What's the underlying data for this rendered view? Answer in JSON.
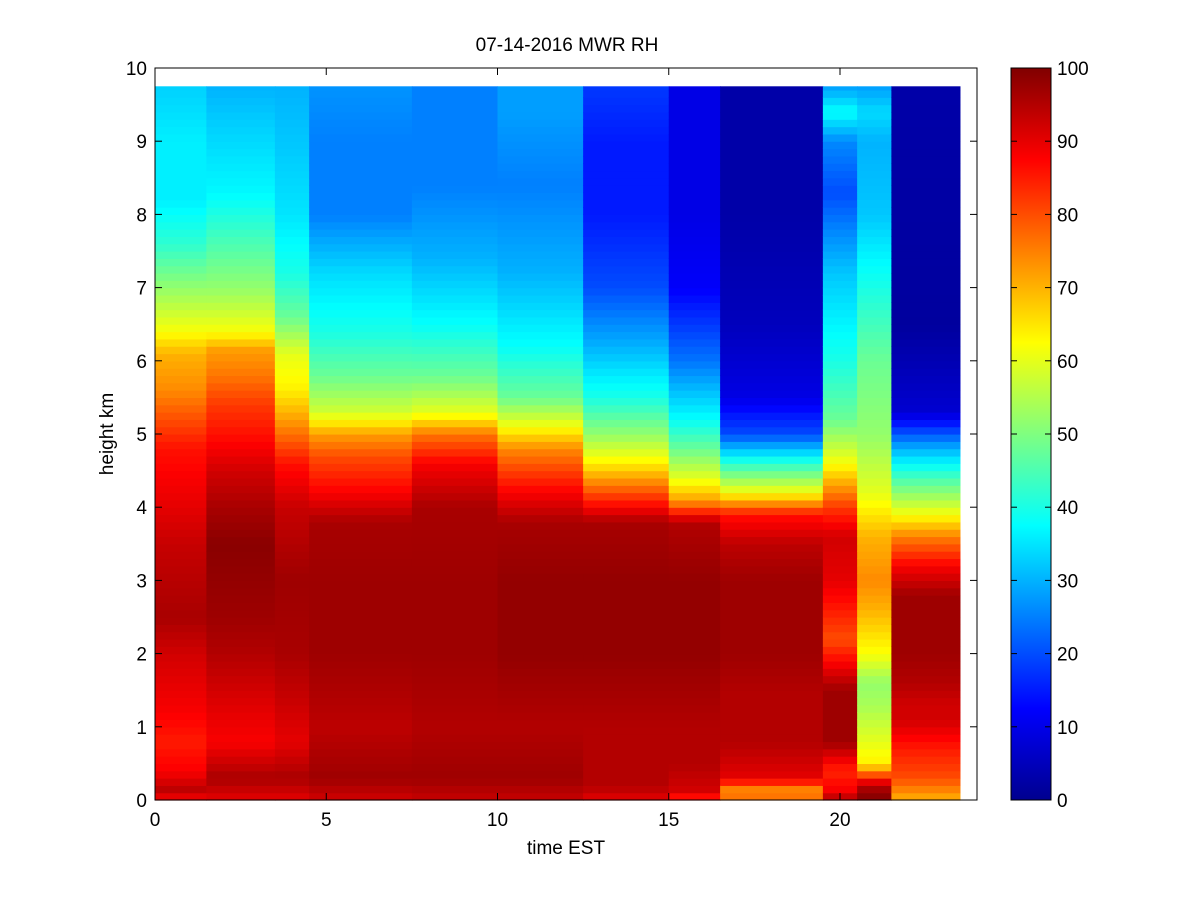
{
  "chart_data": {
    "type": "heatmap",
    "title": "07-14-2016 MWR RH",
    "xlabel": "time EST",
    "ylabel": "height km",
    "xlim": [
      0,
      24
    ],
    "ylim": [
      0,
      10
    ],
    "x_ticks": [
      0,
      5,
      10,
      15,
      20
    ],
    "y_ticks": [
      0,
      1,
      2,
      3,
      4,
      5,
      6,
      7,
      8,
      9,
      10
    ],
    "colorbar": {
      "colormap": "jet",
      "clim": [
        0,
        100
      ],
      "ticks": [
        0,
        10,
        20,
        30,
        40,
        50,
        60,
        70,
        80,
        90,
        100
      ]
    },
    "columns": [
      {
        "t0": 0.0,
        "t1": 1.5,
        "profile": [
          [
            0,
            85
          ],
          [
            0.1,
            95
          ],
          [
            0.4,
            88
          ],
          [
            0.8,
            85
          ],
          [
            1.2,
            88
          ],
          [
            2,
            92
          ],
          [
            2.5,
            96
          ],
          [
            3.5,
            93
          ],
          [
            4,
            90
          ],
          [
            4.8,
            86
          ],
          [
            5.2,
            80
          ],
          [
            5.6,
            74
          ],
          [
            6.1,
            70
          ],
          [
            6.4,
            62
          ],
          [
            7.0,
            52
          ],
          [
            7.6,
            42
          ],
          [
            8.2,
            36
          ],
          [
            9.0,
            36
          ],
          [
            9.75,
            33
          ]
        ]
      },
      {
        "t0": 1.5,
        "t1": 3.5,
        "profile": [
          [
            0,
            90
          ],
          [
            0.3,
            96
          ],
          [
            0.8,
            88
          ],
          [
            1.2,
            90
          ],
          [
            2,
            95
          ],
          [
            2.5,
            97
          ],
          [
            3.5,
            99
          ],
          [
            4,
            96
          ],
          [
            4.5,
            92
          ],
          [
            5.0,
            86
          ],
          [
            5.4,
            82
          ],
          [
            5.8,
            76
          ],
          [
            6.15,
            72
          ],
          [
            6.4,
            62
          ],
          [
            7.0,
            52
          ],
          [
            7.6,
            45
          ],
          [
            8.3,
            37
          ],
          [
            9.2,
            33
          ],
          [
            9.75,
            30
          ]
        ]
      },
      {
        "t0": 3.5,
        "t1": 4.5,
        "profile": [
          [
            0,
            90
          ],
          [
            0.3,
            96
          ],
          [
            0.8,
            90
          ],
          [
            1.2,
            92
          ],
          [
            2,
            96
          ],
          [
            3,
            97
          ],
          [
            4,
            93
          ],
          [
            4.6,
            86
          ],
          [
            5.2,
            72
          ],
          [
            5.6,
            64
          ],
          [
            6.1,
            60
          ],
          [
            6.6,
            48
          ],
          [
            7.2,
            40
          ],
          [
            8.0,
            35
          ],
          [
            9.0,
            32
          ],
          [
            9.75,
            30
          ]
        ]
      },
      {
        "t0": 4.5,
        "t1": 7.5,
        "profile": [
          [
            0,
            92
          ],
          [
            0.3,
            97
          ],
          [
            1,
            94
          ],
          [
            2,
            97
          ],
          [
            3,
            97
          ],
          [
            3.8,
            96
          ],
          [
            4.2,
            88
          ],
          [
            4.7,
            80
          ],
          [
            5.0,
            72
          ],
          [
            5.3,
            58
          ],
          [
            5.8,
            48
          ],
          [
            6.4,
            40
          ],
          [
            7.2,
            34
          ],
          [
            8.0,
            25
          ],
          [
            9.0,
            25
          ],
          [
            9.75,
            27
          ]
        ]
      },
      {
        "t0": 7.5,
        "t1": 10.0,
        "profile": [
          [
            0,
            93
          ],
          [
            0.3,
            97
          ],
          [
            1,
            95
          ],
          [
            2,
            97
          ],
          [
            3,
            97
          ],
          [
            4,
            96
          ],
          [
            4.6,
            88
          ],
          [
            5.0,
            76
          ],
          [
            5.3,
            60
          ],
          [
            5.8,
            48
          ],
          [
            6.5,
            38
          ],
          [
            7.4,
            30
          ],
          [
            8.4,
            25
          ],
          [
            9.75,
            25
          ]
        ]
      },
      {
        "t0": 10.0,
        "t1": 12.5,
        "profile": [
          [
            0,
            93
          ],
          [
            0.3,
            97
          ],
          [
            1,
            95
          ],
          [
            2,
            98
          ],
          [
            3,
            98
          ],
          [
            3.8,
            96
          ],
          [
            4.3,
            86
          ],
          [
            4.8,
            74
          ],
          [
            5.1,
            62
          ],
          [
            5.5,
            48
          ],
          [
            6.2,
            38
          ],
          [
            7.2,
            30
          ],
          [
            8.4,
            25
          ],
          [
            9.4,
            28
          ],
          [
            9.75,
            28
          ]
        ]
      },
      {
        "t0": 12.5,
        "t1": 15.0,
        "profile": [
          [
            0,
            90
          ],
          [
            0.2,
            95
          ],
          [
            1,
            95
          ],
          [
            2,
            98
          ],
          [
            3,
            98
          ],
          [
            3.8,
            96
          ],
          [
            4.2,
            80
          ],
          [
            4.6,
            64
          ],
          [
            5.0,
            52
          ],
          [
            5.5,
            40
          ],
          [
            6.2,
            30
          ],
          [
            7.0,
            20
          ],
          [
            8.0,
            15
          ],
          [
            9.0,
            15
          ],
          [
            9.75,
            18
          ]
        ]
      },
      {
        "t0": 15.0,
        "t1": 16.5,
        "profile": [
          [
            0,
            84
          ],
          [
            0.15,
            92
          ],
          [
            0.5,
            95
          ],
          [
            1,
            95
          ],
          [
            2,
            98
          ],
          [
            3,
            98
          ],
          [
            3.8,
            95
          ],
          [
            4.1,
            72
          ],
          [
            4.4,
            60
          ],
          [
            4.8,
            48
          ],
          [
            5.2,
            38
          ],
          [
            6.0,
            24
          ],
          [
            7.0,
            12
          ],
          [
            8.0,
            10
          ],
          [
            9.75,
            10
          ]
        ]
      },
      {
        "t0": 16.5,
        "t1": 19.5,
        "profile": [
          [
            0,
            82
          ],
          [
            0.1,
            70
          ],
          [
            0.3,
            90
          ],
          [
            0.8,
            95
          ],
          [
            1.5,
            95
          ],
          [
            2,
            97
          ],
          [
            3,
            97
          ],
          [
            3.5,
            94
          ],
          [
            3.9,
            86
          ],
          [
            4.2,
            62
          ],
          [
            4.6,
            42
          ],
          [
            5.0,
            20
          ],
          [
            5.5,
            10
          ],
          [
            6.5,
            6
          ],
          [
            8,
            4
          ],
          [
            9.75,
            4
          ]
        ]
      },
      {
        "t0": 19.5,
        "t1": 20.5,
        "profile": [
          [
            0,
            95
          ],
          [
            0.15,
            88
          ],
          [
            0.4,
            84
          ],
          [
            0.8,
            97
          ],
          [
            1.5,
            97
          ],
          [
            2.2,
            80
          ],
          [
            2.6,
            85
          ],
          [
            3.0,
            90
          ],
          [
            3.6,
            92
          ],
          [
            4.0,
            82
          ],
          [
            4.6,
            62
          ],
          [
            5.2,
            48
          ],
          [
            6.0,
            40
          ],
          [
            7.2,
            32
          ],
          [
            8.3,
            20
          ],
          [
            9.0,
            26
          ],
          [
            9.4,
            38
          ],
          [
            9.75,
            28
          ]
        ]
      },
      {
        "t0": 20.5,
        "t1": 21.5,
        "profile": [
          [
            0,
            100
          ],
          [
            0.2,
            95
          ],
          [
            0.5,
            64
          ],
          [
            0.8,
            60
          ],
          [
            1.3,
            54
          ],
          [
            1.6,
            52
          ],
          [
            2.0,
            62
          ],
          [
            2.6,
            70
          ],
          [
            3.0,
            74
          ],
          [
            3.6,
            70
          ],
          [
            4.2,
            60
          ],
          [
            5.0,
            52
          ],
          [
            6.0,
            48
          ],
          [
            7.0,
            40
          ],
          [
            8.0,
            32
          ],
          [
            9.0,
            30
          ],
          [
            9.4,
            34
          ],
          [
            9.75,
            28
          ]
        ]
      },
      {
        "t0": 21.5,
        "t1": 23.5,
        "profile": [
          [
            0,
            70
          ],
          [
            0.3,
            80
          ],
          [
            0.7,
            85
          ],
          [
            1.1,
            92
          ],
          [
            1.3,
            92
          ],
          [
            1.6,
            95
          ],
          [
            2.0,
            97
          ],
          [
            2.8,
            97
          ],
          [
            3.2,
            88
          ],
          [
            3.6,
            75
          ],
          [
            3.9,
            62
          ],
          [
            4.3,
            48
          ],
          [
            4.8,
            30
          ],
          [
            5.3,
            8
          ],
          [
            6.5,
            3
          ],
          [
            9.75,
            4
          ]
        ]
      }
    ]
  }
}
